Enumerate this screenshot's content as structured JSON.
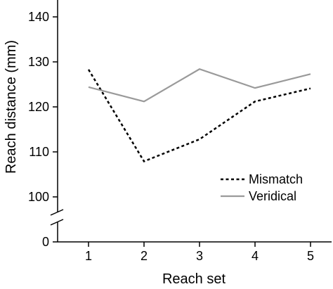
{
  "chart_data": {
    "type": "line",
    "x": [
      1,
      2,
      3,
      4,
      5
    ],
    "xlabel": "Reach set",
    "ylabel": "Reach distance (mm)",
    "ylim": [
      95,
      145
    ],
    "y_ticks": [
      100,
      110,
      120,
      130,
      140
    ],
    "y_break_label": "0",
    "legend_position": "center-right",
    "series": [
      {
        "name": "Mismatch",
        "style": "dashed",
        "color": "#000000",
        "values": [
          128.3,
          107.9,
          112.8,
          121.2,
          124.1
        ]
      },
      {
        "name": "Veridical",
        "style": "solid",
        "color": "#9a9a9a",
        "values": [
          124.4,
          121.2,
          128.4,
          124.2,
          127.3
        ]
      }
    ]
  }
}
